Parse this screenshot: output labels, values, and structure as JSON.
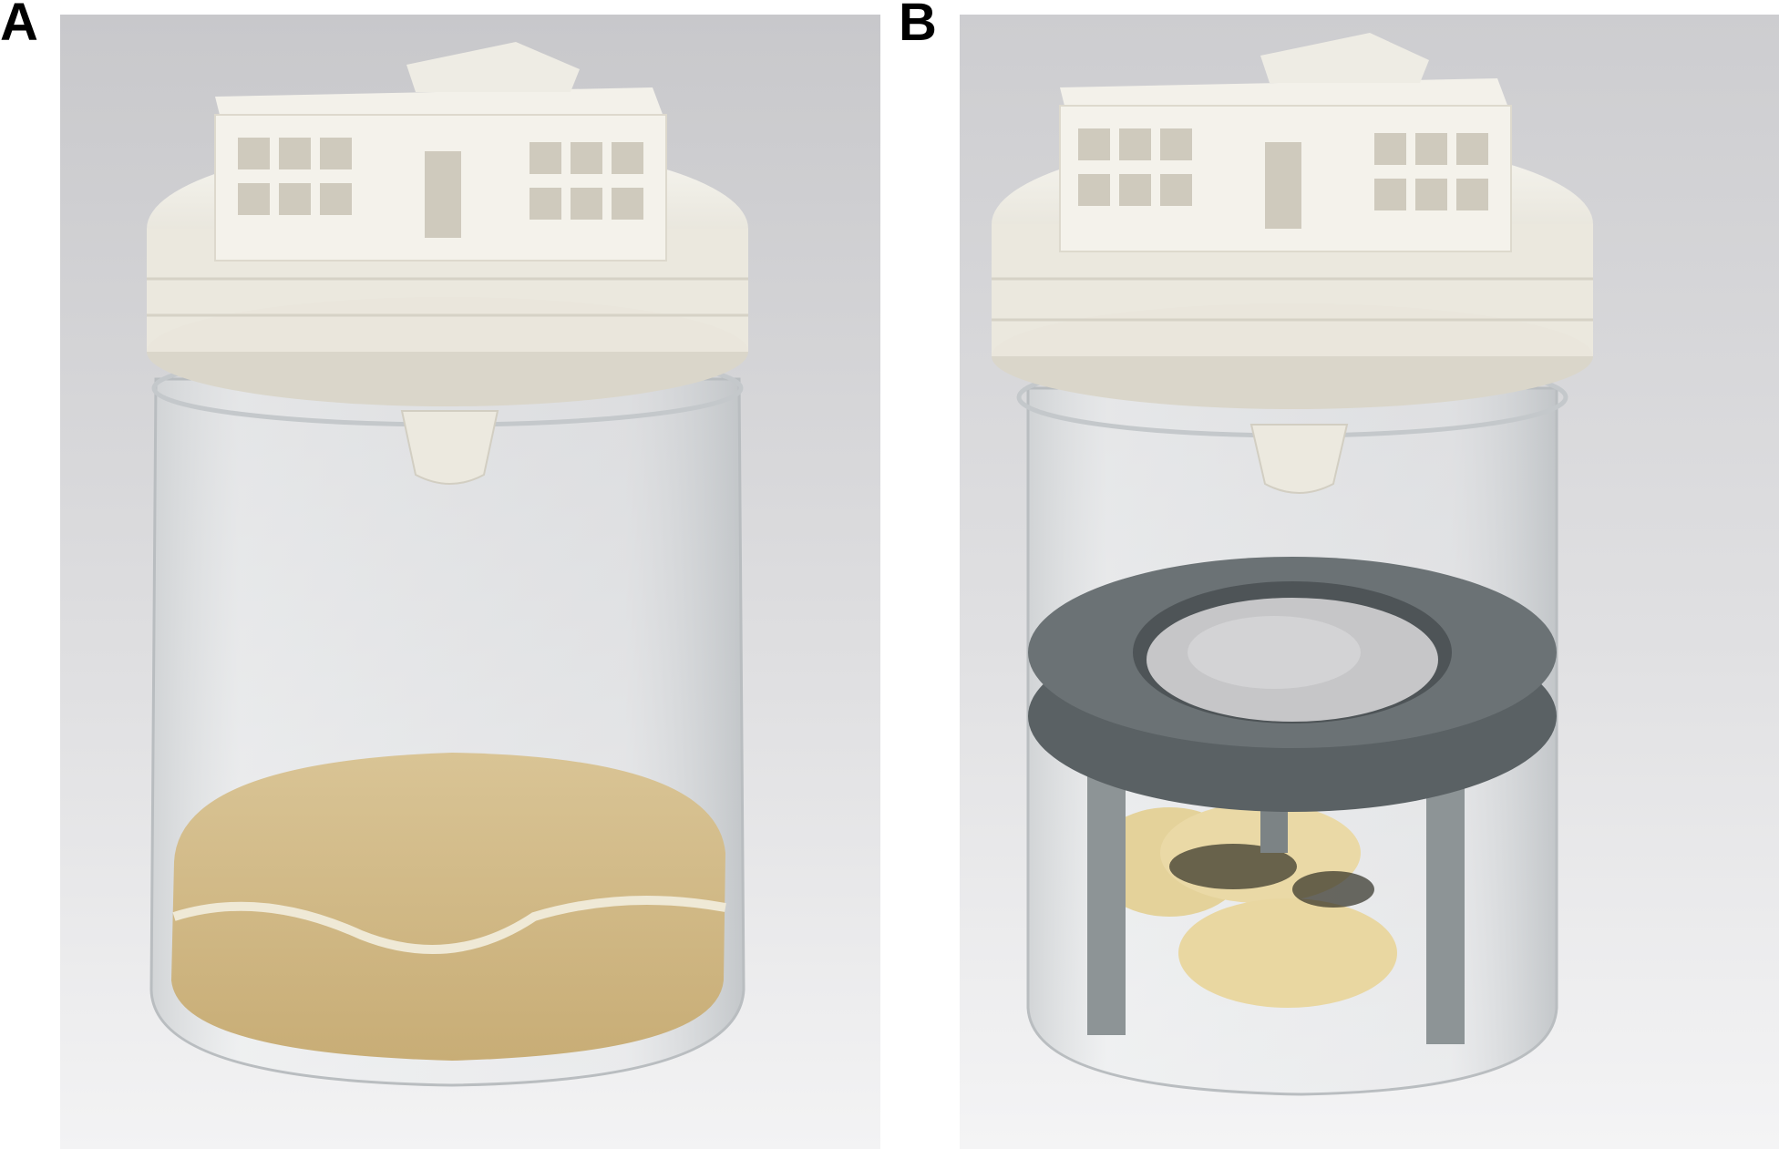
{
  "panels": [
    {
      "label": "A"
    },
    {
      "label": "B"
    }
  ],
  "colors": {
    "background_top": "#cfcfd1",
    "background_bottom": "#f2f2f3",
    "lid": "#f1efe6",
    "lid_shadow": "#d9d5c8",
    "jar_glass": "#e6e8ea",
    "medium": "#d7c08f",
    "insert_ring": "#5d6366",
    "mesh": "#c9c9cb",
    "food": "#e6d6a2"
  }
}
